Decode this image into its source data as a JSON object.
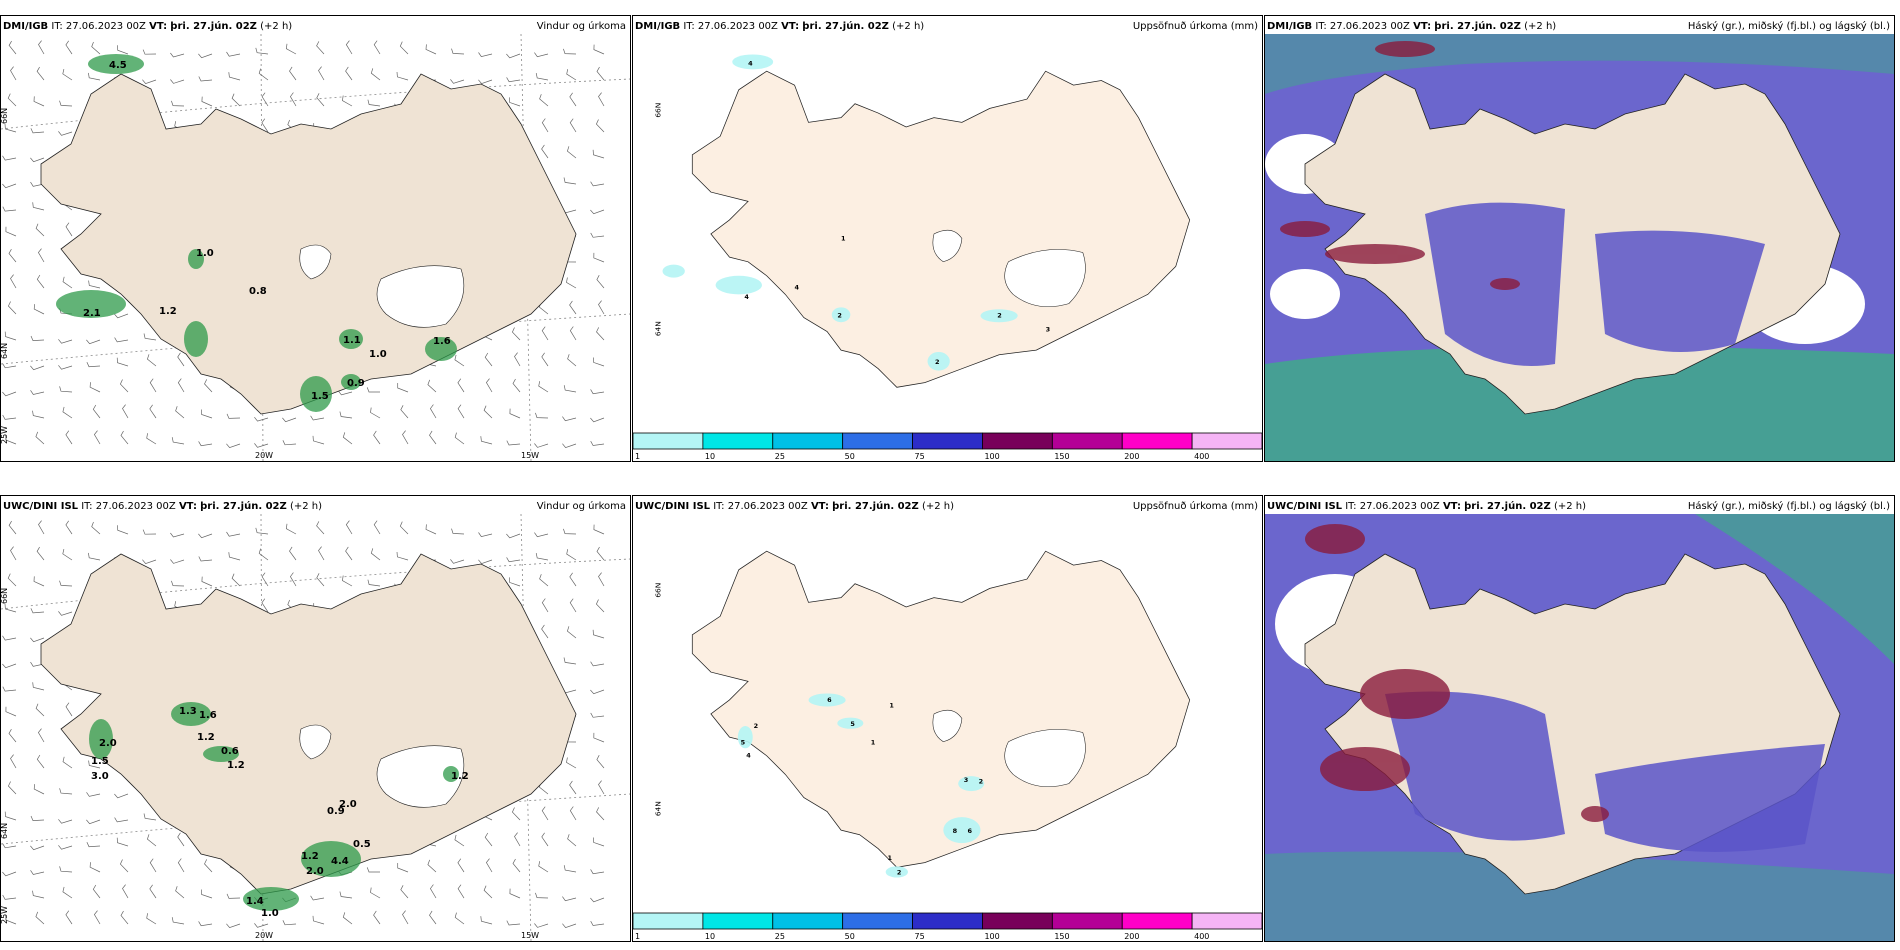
{
  "rows": [
    {
      "model": "DMI/IGB",
      "init": "IT: 27.06.2023 00Z",
      "valid_label": "VT:",
      "valid": "þri. 27.jún. 02Z",
      "lead": "(+2 h)"
    },
    {
      "model": "UWC/DINI ISL",
      "init": "IT: 27.06.2023 00Z",
      "valid_label": "VT:",
      "valid": "þri. 27.jún. 02Z",
      "lead": "(+2 h)"
    }
  ],
  "panel_titles": {
    "wind": "Vindur og úrkoma",
    "precip": "Uppsöfnuð úrkoma (mm)",
    "cloud": "Háský (gr.), miðský (fj.bl.) og lágský (bl.)"
  },
  "axis_labels": {
    "lat66": "66N",
    "lat64": "64N",
    "lon25": "25W",
    "lon20": "20W",
    "lon15": "15W"
  },
  "colorbar": {
    "ticks": [
      "1",
      "10",
      "25",
      "50",
      "75",
      "100",
      "150",
      "200",
      "400"
    ],
    "colors": [
      "#b4f5f5",
      "#00e6e6",
      "#00c0e6",
      "#2d6ee6",
      "#2d2dc8",
      "#78005a",
      "#b40096",
      "#ff00c8",
      "#f5b4f5"
    ]
  },
  "wind_precip_labels": {
    "row1": [
      "4.5",
      "1.0",
      "0.8",
      "2.1",
      "1.2",
      "1.1",
      "1.0",
      "1.6",
      "1.5",
      "0.9"
    ],
    "row2": [
      "1.3",
      "1.6",
      "1.2",
      "2.0",
      "0.6",
      "1.2",
      "1.5",
      "2.0",
      "3.0",
      "1.2",
      "0.9",
      "1.2",
      "0.5",
      "4.4",
      "2.0",
      "1.4",
      "1.0"
    ]
  },
  "precip_labels": {
    "row1": [
      "4",
      "1",
      "2",
      "4",
      "2",
      "2",
      "4",
      "3"
    ],
    "row2": [
      "6",
      "2",
      "5",
      "4",
      "1",
      "1",
      "5",
      "3",
      "2",
      "6",
      "8",
      "1",
      "2"
    ]
  },
  "colors": {
    "land": "#efe3d4",
    "land_plain": "#fcefe2",
    "precip_green": "#2e9a4a",
    "cloud_high": "#3fa98a",
    "cloud_mid": "#5b55c8",
    "cloud_low": "#8a1c3c"
  }
}
